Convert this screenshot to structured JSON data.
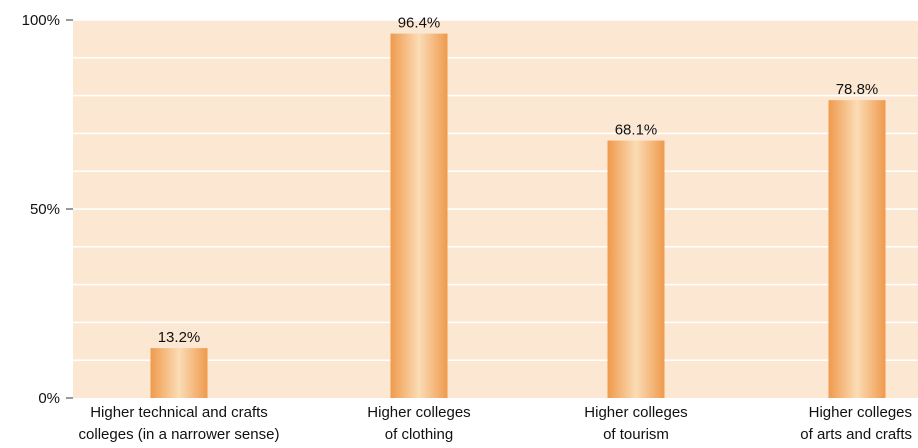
{
  "chart_data": {
    "type": "bar",
    "categories": [
      [
        "Higher technical and crafts",
        "colleges (in a narrower sense)"
      ],
      [
        "Higher colleges",
        "of clothing"
      ],
      [
        "Higher colleges",
        "of tourism"
      ],
      [
        "Higher colleges",
        "of arts and crafts"
      ]
    ],
    "values": [
      13.2,
      96.4,
      68.1,
      78.8
    ],
    "data_labels": [
      "13.2%",
      "96.4%",
      "68.1%",
      "78.8%"
    ],
    "yticks": [
      {
        "value": 0,
        "label": "0%"
      },
      {
        "value": 50,
        "label": "50%"
      },
      {
        "value": 100,
        "label": "100%"
      }
    ],
    "ylim": [
      0,
      100
    ],
    "grid": true,
    "colors": {
      "background": "#fce8d2",
      "gridline": "#ffffff",
      "bar_edge": "#ef9a4c",
      "bar_center": "#fbdcb6"
    }
  }
}
